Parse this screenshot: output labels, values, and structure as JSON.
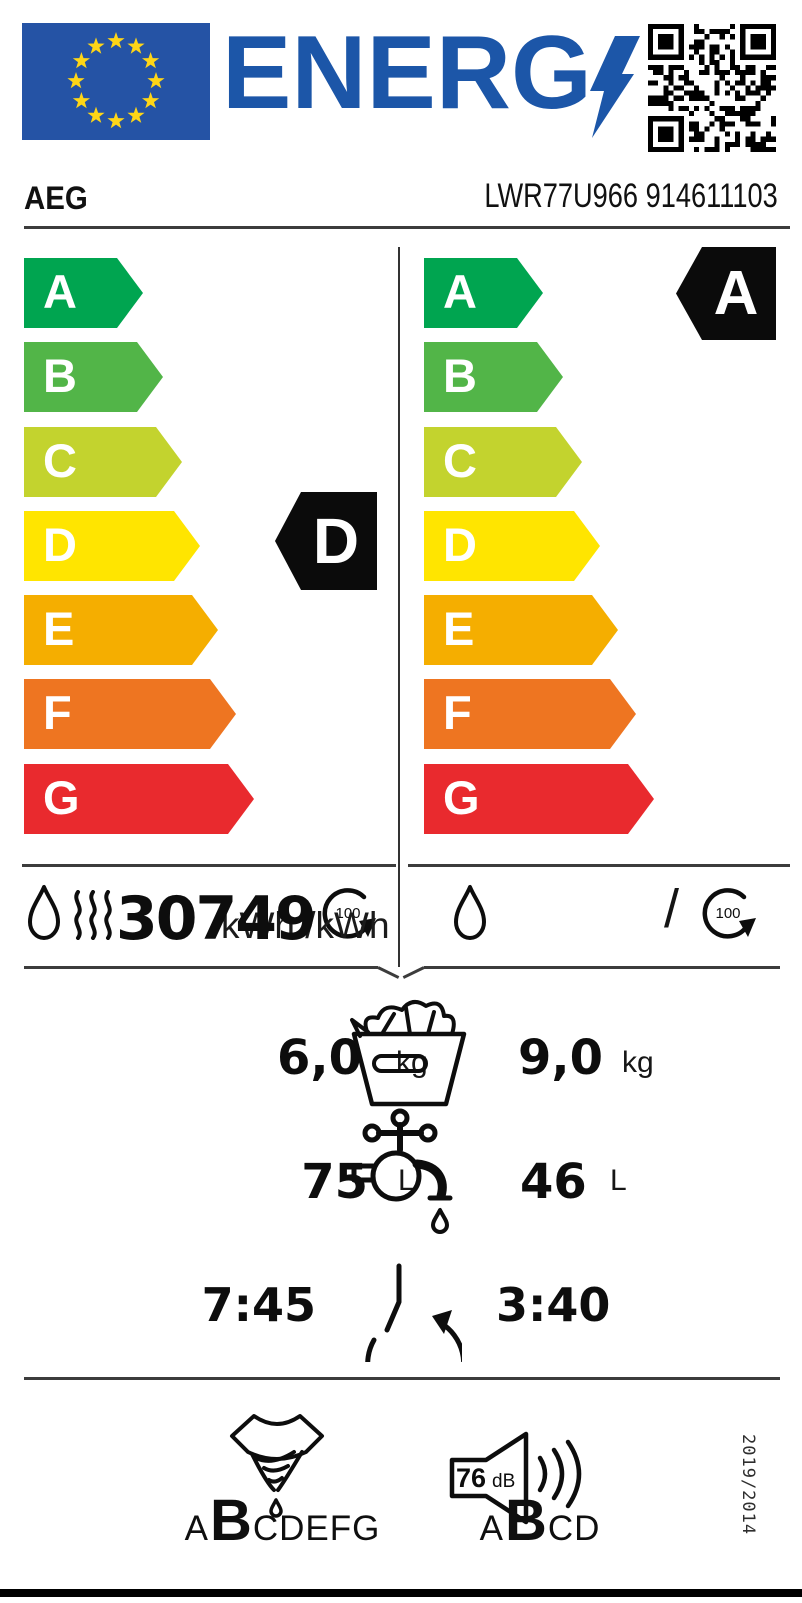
{
  "colors": {
    "eu_blue": "#2553a5",
    "star_yellow": "#ffd617",
    "logo_blue": "#1c56a8",
    "badge_black": "#0b0b0b"
  },
  "header": {
    "logo_text": "ENERG",
    "brand": "AEG",
    "model": "LWR77U966 914611103"
  },
  "scales": {
    "grades": [
      {
        "letter": "A",
        "color": "#00a550"
      },
      {
        "letter": "B",
        "color": "#52b548"
      },
      {
        "letter": "C",
        "color": "#c3d32e"
      },
      {
        "letter": "D",
        "color": "#ffe500"
      },
      {
        "letter": "E",
        "color": "#f5ae00"
      },
      {
        "letter": "F",
        "color": "#ee7521"
      },
      {
        "letter": "G",
        "color": "#e92a2e"
      }
    ],
    "left_rating": "D",
    "right_rating": "A"
  },
  "consumption": {
    "left": {
      "value": "30749",
      "unit_text": "kWh /kWh",
      "cycles": "100"
    },
    "right": {
      "slash": "/",
      "cycles": "100"
    }
  },
  "metrics": {
    "capacity": {
      "left_value": "6,0",
      "left_unit": "kg",
      "right_value": "9,0",
      "right_unit": "kg"
    },
    "water": {
      "left_value": "75",
      "left_unit": "L",
      "right_value": "46",
      "right_unit": "L"
    },
    "duration": {
      "left_value": "7:45",
      "right_value": "3:40"
    }
  },
  "bottom": {
    "spin": {
      "prefix": "A",
      "rating": "B",
      "suffix": "CDEFG"
    },
    "noise": {
      "value": "76",
      "unit": "dB",
      "prefix": "A",
      "rating": "B",
      "suffix": "CD"
    },
    "regulation": "2019/2014"
  }
}
